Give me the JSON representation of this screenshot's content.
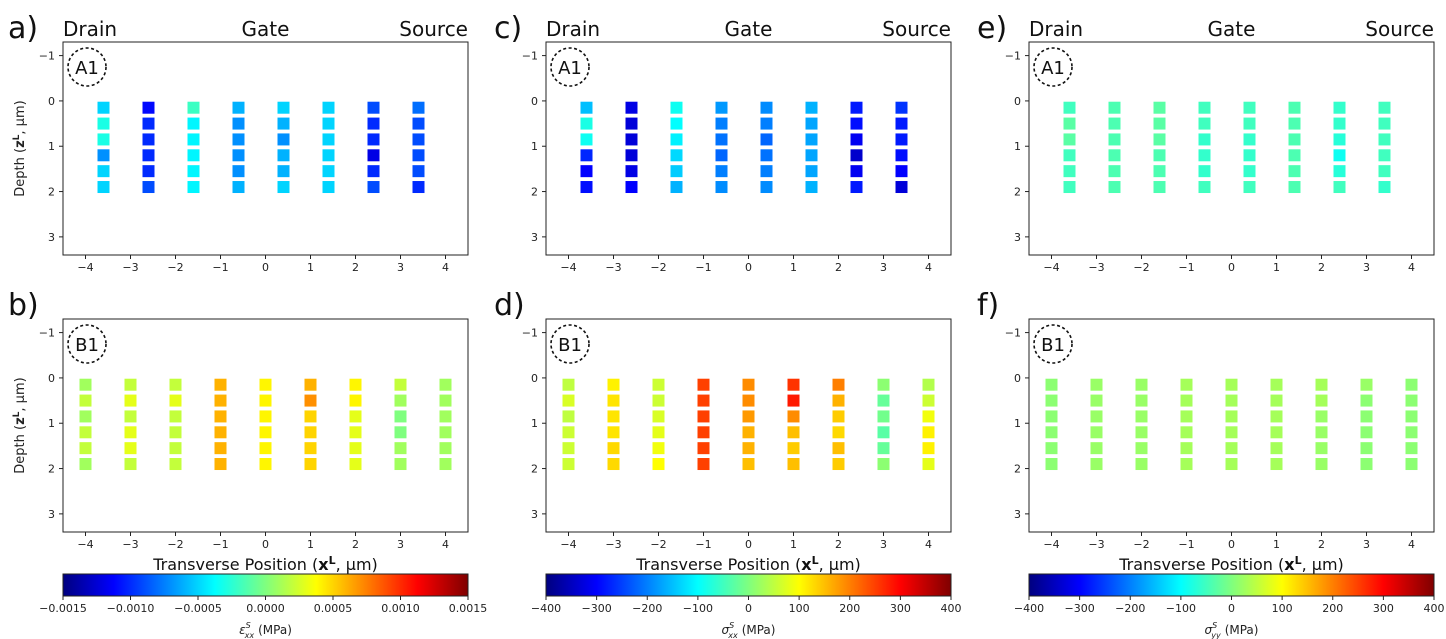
{
  "colors": {
    "jet": [
      "#00007f",
      "#0000ff",
      "#007fff",
      "#00ffff",
      "#7fff7f",
      "#ffff00",
      "#ff7f00",
      "#ff0000",
      "#7f0000"
    ]
  },
  "header_labels": {
    "drain": "Drain",
    "gate": "Gate",
    "source": "Source"
  },
  "xlabel": "Transverse Position (",
  "xlabel_bold": "x",
  "xlabel_sup": "L",
  "xlabel_end": ", μm)",
  "ylabel": "Depth (",
  "ylabel_bold": "z",
  "ylabel_sup": "L",
  "ylabel_end": ", μm)",
  "chart_data": [
    {
      "panel": "a)",
      "region_label": "A1",
      "type": "heatmap",
      "x": [
        -3.6,
        -2.6,
        -1.6,
        -0.6,
        0.4,
        1.4,
        2.4,
        3.4
      ],
      "y": [
        0.15,
        0.5,
        0.85,
        1.2,
        1.55,
        1.9
      ],
      "xlim": [
        -4.5,
        4.5
      ],
      "ylim": [
        3.4,
        -1.3
      ],
      "xticks": [
        "−4",
        "−3",
        "−2",
        "−1",
        "0",
        "1",
        "2",
        "3",
        "4"
      ],
      "yticks": [
        "−1",
        "0",
        "1",
        "2",
        "3"
      ],
      "clim": [
        -0.0015,
        0.0015
      ],
      "values": [
        [
          -0.0005,
          -0.0011,
          -0.0002,
          -0.0006,
          -0.0005,
          -0.0005,
          -0.0009,
          -0.0008
        ],
        [
          -0.0003,
          -0.001,
          -0.0004,
          -0.0007,
          -0.0006,
          -0.0005,
          -0.001,
          -0.0009
        ],
        [
          -0.0003,
          -0.001,
          -0.0004,
          -0.0007,
          -0.0007,
          -0.0005,
          -0.001,
          -0.0009
        ],
        [
          -0.0007,
          -0.001,
          -0.0004,
          -0.0007,
          -0.0006,
          -0.0005,
          -0.0012,
          -0.0009
        ],
        [
          -0.0005,
          -0.001,
          -0.0004,
          -0.0007,
          -0.0006,
          -0.0005,
          -0.001,
          -0.0009
        ],
        [
          -0.0005,
          -0.0009,
          -0.0004,
          -0.0006,
          -0.0005,
          -0.0005,
          -0.0009,
          -0.001
        ]
      ]
    },
    {
      "panel": "b)",
      "region_label": "B1",
      "type": "heatmap",
      "x": [
        -4,
        -3,
        -2,
        -1,
        0,
        1,
        2,
        3,
        4
      ],
      "y": [
        0.15,
        0.5,
        0.85,
        1.2,
        1.55,
        1.9
      ],
      "xlim": [
        -4.5,
        4.5
      ],
      "ylim": [
        3.4,
        -1.3
      ],
      "xticks": [
        "−4",
        "−3",
        "−2",
        "−1",
        "0",
        "1",
        "2",
        "3",
        "4"
      ],
      "yticks": [
        "−1",
        "0",
        "1",
        "2",
        "3"
      ],
      "clim": [
        -0.0015,
        0.0015
      ],
      "values": [
        [
          0.0001,
          0.0002,
          0.0002,
          0.0006,
          0.0004,
          0.0006,
          0.0004,
          0.0002,
          0.0001
        ],
        [
          0.0002,
          0.0003,
          0.0003,
          0.0006,
          0.0004,
          0.0007,
          0.0004,
          0.0001,
          0.0001
        ],
        [
          0.0001,
          0.0002,
          0.0002,
          0.0006,
          0.0004,
          0.0005,
          0.0003,
          0.0,
          0.0001
        ],
        [
          0.0002,
          0.0003,
          0.0002,
          0.0006,
          0.0004,
          0.0005,
          0.0003,
          0.0,
          0.0001
        ],
        [
          0.0002,
          0.0003,
          0.0002,
          0.0006,
          0.0004,
          0.0005,
          0.0003,
          0.0001,
          0.0001
        ],
        [
          0.0001,
          0.0002,
          0.0002,
          0.0006,
          0.0004,
          0.0005,
          0.0003,
          0.0001,
          0.0001
        ]
      ]
    },
    {
      "panel": "c)",
      "region_label": "A1",
      "type": "heatmap",
      "x": [
        -3.6,
        -2.6,
        -1.6,
        -0.6,
        0.4,
        1.4,
        2.4,
        3.4
      ],
      "y": [
        0.15,
        0.5,
        0.85,
        1.2,
        1.55,
        1.9
      ],
      "xlim": [
        -4.5,
        4.5
      ],
      "ylim": [
        3.4,
        -1.3
      ],
      "xticks": [
        "−4",
        "−3",
        "−2",
        "−1",
        "0",
        "1",
        "2",
        "3",
        "4"
      ],
      "yticks": [
        "−1",
        "0",
        "1",
        "2",
        "3"
      ],
      "clim": [
        -400,
        400
      ],
      "values": [
        [
          -150,
          -320,
          -90,
          -180,
          -190,
          -160,
          -280,
          -260
        ],
        [
          -80,
          -330,
          -100,
          -200,
          -200,
          -170,
          -290,
          -280
        ],
        [
          -90,
          -330,
          -110,
          -210,
          -220,
          -170,
          -310,
          -280
        ],
        [
          -270,
          -330,
          -130,
          -220,
          -210,
          -170,
          -340,
          -290
        ],
        [
          -300,
          -320,
          -140,
          -200,
          -200,
          -170,
          -310,
          -300
        ],
        [
          -290,
          -300,
          -160,
          -190,
          -190,
          -160,
          -280,
          -330
        ]
      ]
    },
    {
      "panel": "d)",
      "region_label": "B1",
      "type": "heatmap",
      "x": [
        -4,
        -3,
        -2,
        -1,
        0,
        1,
        2,
        3,
        4
      ],
      "y": [
        0.15,
        0.5,
        0.85,
        1.2,
        1.55,
        1.9
      ],
      "xlim": [
        -4.5,
        4.5
      ],
      "ylim": [
        3.4,
        -1.3
      ],
      "xticks": [
        "−4",
        "−3",
        "−2",
        "−1",
        "0",
        "1",
        "2",
        "3",
        "4"
      ],
      "yticks": [
        "−1",
        "0",
        "1",
        "2",
        "3"
      ],
      "clim": [
        -400,
        400
      ],
      "values": [
        [
          50,
          110,
          60,
          250,
          190,
          260,
          200,
          10,
          40
        ],
        [
          70,
          120,
          60,
          250,
          190,
          280,
          160,
          -20,
          60
        ],
        [
          50,
          120,
          70,
          250,
          180,
          190,
          140,
          -10,
          90
        ],
        [
          60,
          120,
          80,
          250,
          160,
          150,
          130,
          -30,
          110
        ],
        [
          60,
          130,
          90,
          250,
          160,
          140,
          150,
          -20,
          110
        ],
        [
          60,
          130,
          100,
          250,
          150,
          150,
          140,
          10,
          80
        ]
      ]
    },
    {
      "panel": "e)",
      "region_label": "A1",
      "type": "heatmap",
      "x": [
        -3.6,
        -2.6,
        -1.6,
        -0.6,
        0.4,
        1.4,
        2.4,
        3.4
      ],
      "y": [
        0.15,
        0.5,
        0.85,
        1.2,
        1.55,
        1.9
      ],
      "xlim": [
        -4.5,
        4.5
      ],
      "ylim": [
        3.4,
        -1.3
      ],
      "xticks": [
        "−4",
        "−3",
        "−2",
        "−1",
        "0",
        "1",
        "2",
        "3",
        "4"
      ],
      "yticks": [
        "−1",
        "0",
        "1",
        "2",
        "3"
      ],
      "clim": [
        -400,
        400
      ],
      "values": [
        [
          -50,
          -40,
          -30,
          -50,
          -50,
          -40,
          -60,
          -50
        ],
        [
          -30,
          -40,
          -30,
          -50,
          -50,
          -40,
          -60,
          -50
        ],
        [
          -30,
          -40,
          -30,
          -60,
          -60,
          -40,
          -70,
          -50
        ],
        [
          -50,
          -40,
          -40,
          -60,
          -60,
          -40,
          -90,
          -50
        ],
        [
          -50,
          -40,
          -40,
          -60,
          -60,
          -40,
          -70,
          -50
        ],
        [
          -50,
          -40,
          -40,
          -50,
          -50,
          -40,
          -50,
          -60
        ]
      ]
    },
    {
      "panel": "f)",
      "region_label": "B1",
      "type": "heatmap",
      "x": [
        -4,
        -3,
        -2,
        -1,
        0,
        1,
        2,
        3,
        4
      ],
      "y": [
        0.15,
        0.5,
        0.85,
        1.2,
        1.55,
        1.9
      ],
      "xlim": [
        -4.5,
        4.5
      ],
      "ylim": [
        3.4,
        -1.3
      ],
      "xticks": [
        "−4",
        "−3",
        "−2",
        "−1",
        "0",
        "1",
        "2",
        "3",
        "4"
      ],
      "yticks": [
        "−1",
        "0",
        "1",
        "2",
        "3"
      ],
      "clim": [
        -400,
        400
      ],
      "values": [
        [
          10,
          20,
          20,
          30,
          30,
          30,
          30,
          20,
          10
        ],
        [
          10,
          20,
          20,
          30,
          30,
          30,
          30,
          10,
          10
        ],
        [
          10,
          20,
          20,
          30,
          30,
          30,
          20,
          10,
          10
        ],
        [
          10,
          20,
          20,
          30,
          30,
          30,
          20,
          10,
          10
        ],
        [
          10,
          20,
          20,
          30,
          30,
          30,
          20,
          10,
          10
        ],
        [
          10,
          20,
          20,
          30,
          30,
          30,
          20,
          10,
          10
        ]
      ]
    }
  ],
  "colorbars": [
    {
      "ticks": [
        "−0.0015",
        "−0.0010",
        "−0.0005",
        "0.0000",
        "0.0005",
        "0.0010",
        "0.0015"
      ],
      "label_symbol": "ε",
      "label_sup": "S",
      "label_sub": "xx",
      "label_unit": "(MPa)"
    },
    {
      "ticks": [
        "−400",
        "−300",
        "−200",
        "−100",
        "0",
        "100",
        "200",
        "300",
        "400"
      ],
      "label_symbol": "σ",
      "label_sup": "S",
      "label_sub": "xx",
      "label_unit": "(MPa)"
    },
    {
      "ticks": [
        "−400",
        "−300",
        "−200",
        "−100",
        "0",
        "100",
        "200",
        "300",
        "400"
      ],
      "label_symbol": "σ",
      "label_sup": "S",
      "label_sub": "yy",
      "label_unit": "(MPa)"
    }
  ]
}
